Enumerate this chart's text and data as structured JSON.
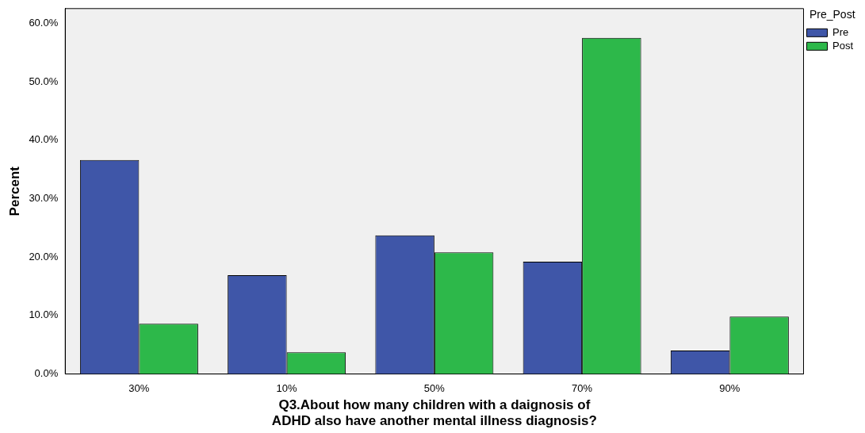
{
  "chart_data": {
    "type": "bar",
    "xlabel": "Q3.About how many children with a daignosis of ADHD also have another mental illness diagnosis?",
    "ylabel": "Percent",
    "legend_title": "Pre_Post",
    "categories": [
      "30%",
      "10%",
      "50%",
      "70%",
      "90%"
    ],
    "series": [
      {
        "name": "Pre",
        "color": "#3f56a8",
        "values": [
          36.6,
          16.9,
          23.7,
          19.2,
          4.0
        ]
      },
      {
        "name": "Post",
        "color": "#2db84a",
        "values": [
          8.6,
          3.7,
          20.8,
          57.5,
          9.8
        ]
      }
    ],
    "ylim": [
      0,
      62.5
    ],
    "yticks": [
      {
        "value": 0,
        "label": "0.0%"
      },
      {
        "value": 10,
        "label": "10.0%"
      },
      {
        "value": 20,
        "label": "20.0%"
      },
      {
        "value": 30,
        "label": "30.0%"
      },
      {
        "value": 40,
        "label": "40.0%"
      },
      {
        "value": 50,
        "label": "50.0%"
      },
      {
        "value": 60,
        "label": "60.0%"
      }
    ],
    "grid": false,
    "legend": "top right"
  }
}
